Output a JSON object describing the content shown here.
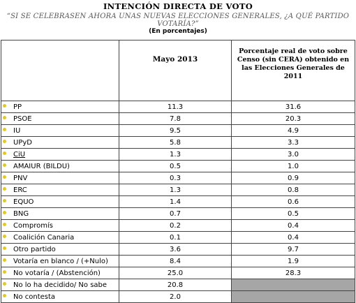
{
  "header": {
    "title": "INTENCIÓN DIRECTA DE VOTO",
    "question": "“SI SE CELEBRASEN AHORA UNAS NUEVAS ELECCIONES GENERALES, ¿A QUÉ PARTIDO VOTARÍA?”",
    "units": "(En porcentajes)"
  },
  "columns": {
    "mayo": "Mayo 2013",
    "real": "Porcentaje real de voto sobre Censo (sin CERA) obtenido en las Elecciones Generales de 2011"
  },
  "bullet_color": "#e3c62d",
  "rows": [
    {
      "party": "PP",
      "mayo": "11.3",
      "real": "31.6"
    },
    {
      "party": "PSOE",
      "mayo": "7.8",
      "real": "20.3"
    },
    {
      "party": "IU",
      "mayo": "9.5",
      "real": "4.9"
    },
    {
      "party": "UPyD",
      "mayo": "5.8",
      "real": "3.3"
    },
    {
      "party": "CiU",
      "mayo": "1.3",
      "real": "3.0"
    },
    {
      "party": "AMAIUR (BILDU)",
      "mayo": "0.5",
      "real": "1.0"
    },
    {
      "party": "PNV",
      "mayo": "0.3",
      "real": "0.9"
    },
    {
      "party": "ERC",
      "mayo": "1.3",
      "real": "0.8"
    },
    {
      "party": "EQUO",
      "mayo": "1.4",
      "real": "0.6"
    },
    {
      "party": "BNG",
      "mayo": "0.7",
      "real": "0.5"
    },
    {
      "party": "Compromís",
      "mayo": "0.2",
      "real": "0.4"
    },
    {
      "party": "Coalición Canaria",
      "mayo": "0.1",
      "real": "0.4"
    },
    {
      "party": "Otro partido",
      "mayo": "3.6",
      "real": "9.7"
    },
    {
      "party": "Votaría en blanco / (+Nulo)",
      "mayo": "8.4",
      "real": "1.9"
    },
    {
      "party": "No votaría / (Abstención)",
      "mayo": "25.0",
      "real": "28.3"
    },
    {
      "party": "No lo ha decidido/ No sabe",
      "mayo": "20.8",
      "real": ""
    },
    {
      "party": "No contesta",
      "mayo": "2.0",
      "real": ""
    }
  ]
}
